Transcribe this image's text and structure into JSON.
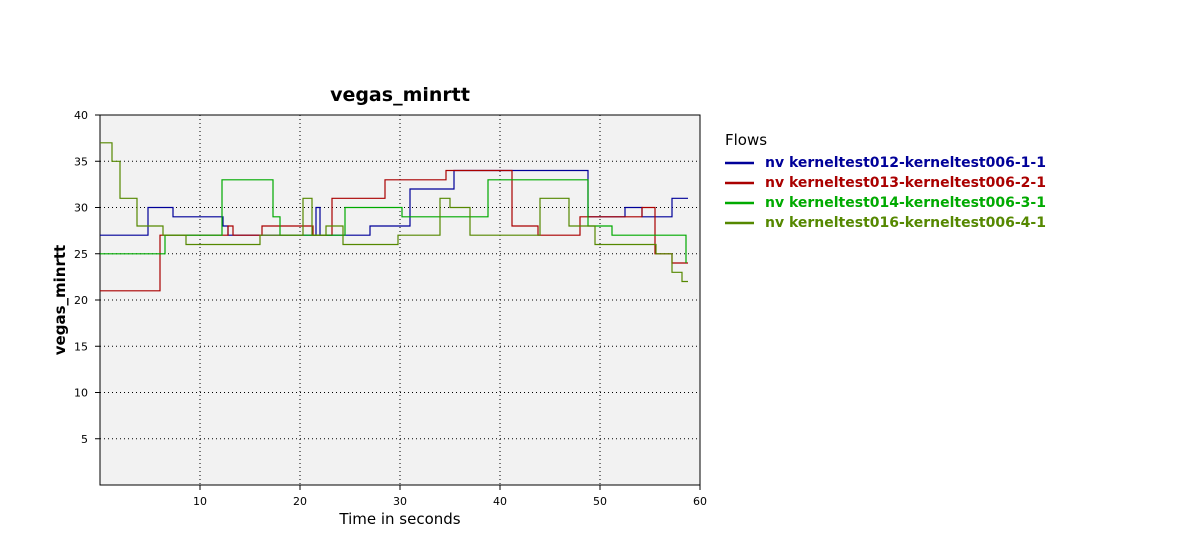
{
  "chart_data": {
    "type": "line",
    "title": "vegas_minrtt",
    "xlabel": "Time in seconds",
    "ylabel": "vegas_minrtt",
    "xlim": [
      0,
      60
    ],
    "ylim": [
      0,
      40
    ],
    "xticks": [
      10,
      20,
      30,
      40,
      50,
      60
    ],
    "yticks": [
      5,
      10,
      15,
      20,
      25,
      30,
      35,
      40
    ],
    "grid": true,
    "legend_title": "Flows",
    "legend_position": "right",
    "series": [
      {
        "name": "nv kerneltest012-kerneltest006-1-1",
        "color": "#000099",
        "points": [
          [
            0,
            27
          ],
          [
            4.8,
            27
          ],
          [
            4.8,
            30
          ],
          [
            7.3,
            30
          ],
          [
            7.3,
            29
          ],
          [
            12.3,
            29
          ],
          [
            12.3,
            28
          ],
          [
            12.8,
            28
          ],
          [
            12.8,
            27
          ],
          [
            21.6,
            27
          ],
          [
            21.6,
            30
          ],
          [
            22,
            30
          ],
          [
            22,
            27
          ],
          [
            27,
            27
          ],
          [
            27,
            28
          ],
          [
            31,
            28
          ],
          [
            31,
            32
          ],
          [
            35.4,
            32
          ],
          [
            35.4,
            34
          ],
          [
            48.8,
            34
          ],
          [
            48.8,
            29
          ],
          [
            52.5,
            29
          ],
          [
            52.5,
            30
          ],
          [
            54.2,
            30
          ],
          [
            54.2,
            29
          ],
          [
            57.2,
            29
          ],
          [
            57.2,
            31
          ],
          [
            58.8,
            31
          ]
        ]
      },
      {
        "name": "nv kerneltest013-kerneltest006-2-1",
        "color": "#aa0000",
        "points": [
          [
            0,
            21
          ],
          [
            6,
            21
          ],
          [
            6,
            27
          ],
          [
            12.8,
            27
          ],
          [
            12.8,
            28
          ],
          [
            13.3,
            28
          ],
          [
            13.3,
            27
          ],
          [
            16.2,
            27
          ],
          [
            16.2,
            28
          ],
          [
            21.3,
            28
          ],
          [
            21.3,
            27
          ],
          [
            23.2,
            27
          ],
          [
            23.2,
            31
          ],
          [
            28.5,
            31
          ],
          [
            28.5,
            33
          ],
          [
            34.6,
            33
          ],
          [
            34.6,
            34
          ],
          [
            41.2,
            34
          ],
          [
            41.2,
            28
          ],
          [
            43.8,
            28
          ],
          [
            43.8,
            27
          ],
          [
            48,
            27
          ],
          [
            48,
            29
          ],
          [
            54.2,
            29
          ],
          [
            54.2,
            30
          ],
          [
            55.5,
            30
          ],
          [
            55.5,
            25
          ],
          [
            57.2,
            25
          ],
          [
            57.2,
            24
          ],
          [
            58.8,
            24
          ]
        ]
      },
      {
        "name": "nv kerneltest014-kerneltest006-3-1",
        "color": "#00aa00",
        "points": [
          [
            0,
            25
          ],
          [
            6.5,
            25
          ],
          [
            6.5,
            27
          ],
          [
            12.2,
            27
          ],
          [
            12.2,
            33
          ],
          [
            17.3,
            33
          ],
          [
            17.3,
            29
          ],
          [
            18,
            29
          ],
          [
            18,
            27
          ],
          [
            24.5,
            27
          ],
          [
            24.5,
            30
          ],
          [
            30.2,
            30
          ],
          [
            30.2,
            29
          ],
          [
            38.8,
            29
          ],
          [
            38.8,
            33
          ],
          [
            45,
            33
          ],
          [
            45,
            33
          ],
          [
            48.8,
            33
          ],
          [
            48.8,
            28
          ],
          [
            51.2,
            28
          ],
          [
            51.2,
            27
          ],
          [
            58.6,
            27
          ],
          [
            58.6,
            24
          ]
        ]
      },
      {
        "name": "nv kerneltest016-kerneltest006-4-1",
        "color": "#558800",
        "points": [
          [
            0,
            37
          ],
          [
            1.2,
            37
          ],
          [
            1.2,
            35
          ],
          [
            2,
            35
          ],
          [
            2,
            31
          ],
          [
            3.7,
            31
          ],
          [
            3.7,
            28
          ],
          [
            6.3,
            28
          ],
          [
            6.3,
            27
          ],
          [
            8.6,
            27
          ],
          [
            8.6,
            26
          ],
          [
            16,
            26
          ],
          [
            16,
            27
          ],
          [
            20.3,
            27
          ],
          [
            20.3,
            31
          ],
          [
            21.2,
            31
          ],
          [
            21.2,
            27
          ],
          [
            22.6,
            27
          ],
          [
            22.6,
            28
          ],
          [
            24.3,
            28
          ],
          [
            24.3,
            26
          ],
          [
            29.8,
            26
          ],
          [
            29.8,
            27
          ],
          [
            34,
            27
          ],
          [
            34,
            31
          ],
          [
            35,
            31
          ],
          [
            35,
            30
          ],
          [
            37,
            30
          ],
          [
            37,
            27
          ],
          [
            44,
            27
          ],
          [
            44,
            31
          ],
          [
            46.9,
            31
          ],
          [
            46.9,
            28
          ],
          [
            49.5,
            28
          ],
          [
            49.5,
            26
          ],
          [
            55.6,
            26
          ],
          [
            55.6,
            25
          ],
          [
            57.2,
            25
          ],
          [
            57.2,
            23
          ],
          [
            58.2,
            23
          ],
          [
            58.2,
            22
          ],
          [
            58.8,
            22
          ]
        ]
      }
    ]
  }
}
